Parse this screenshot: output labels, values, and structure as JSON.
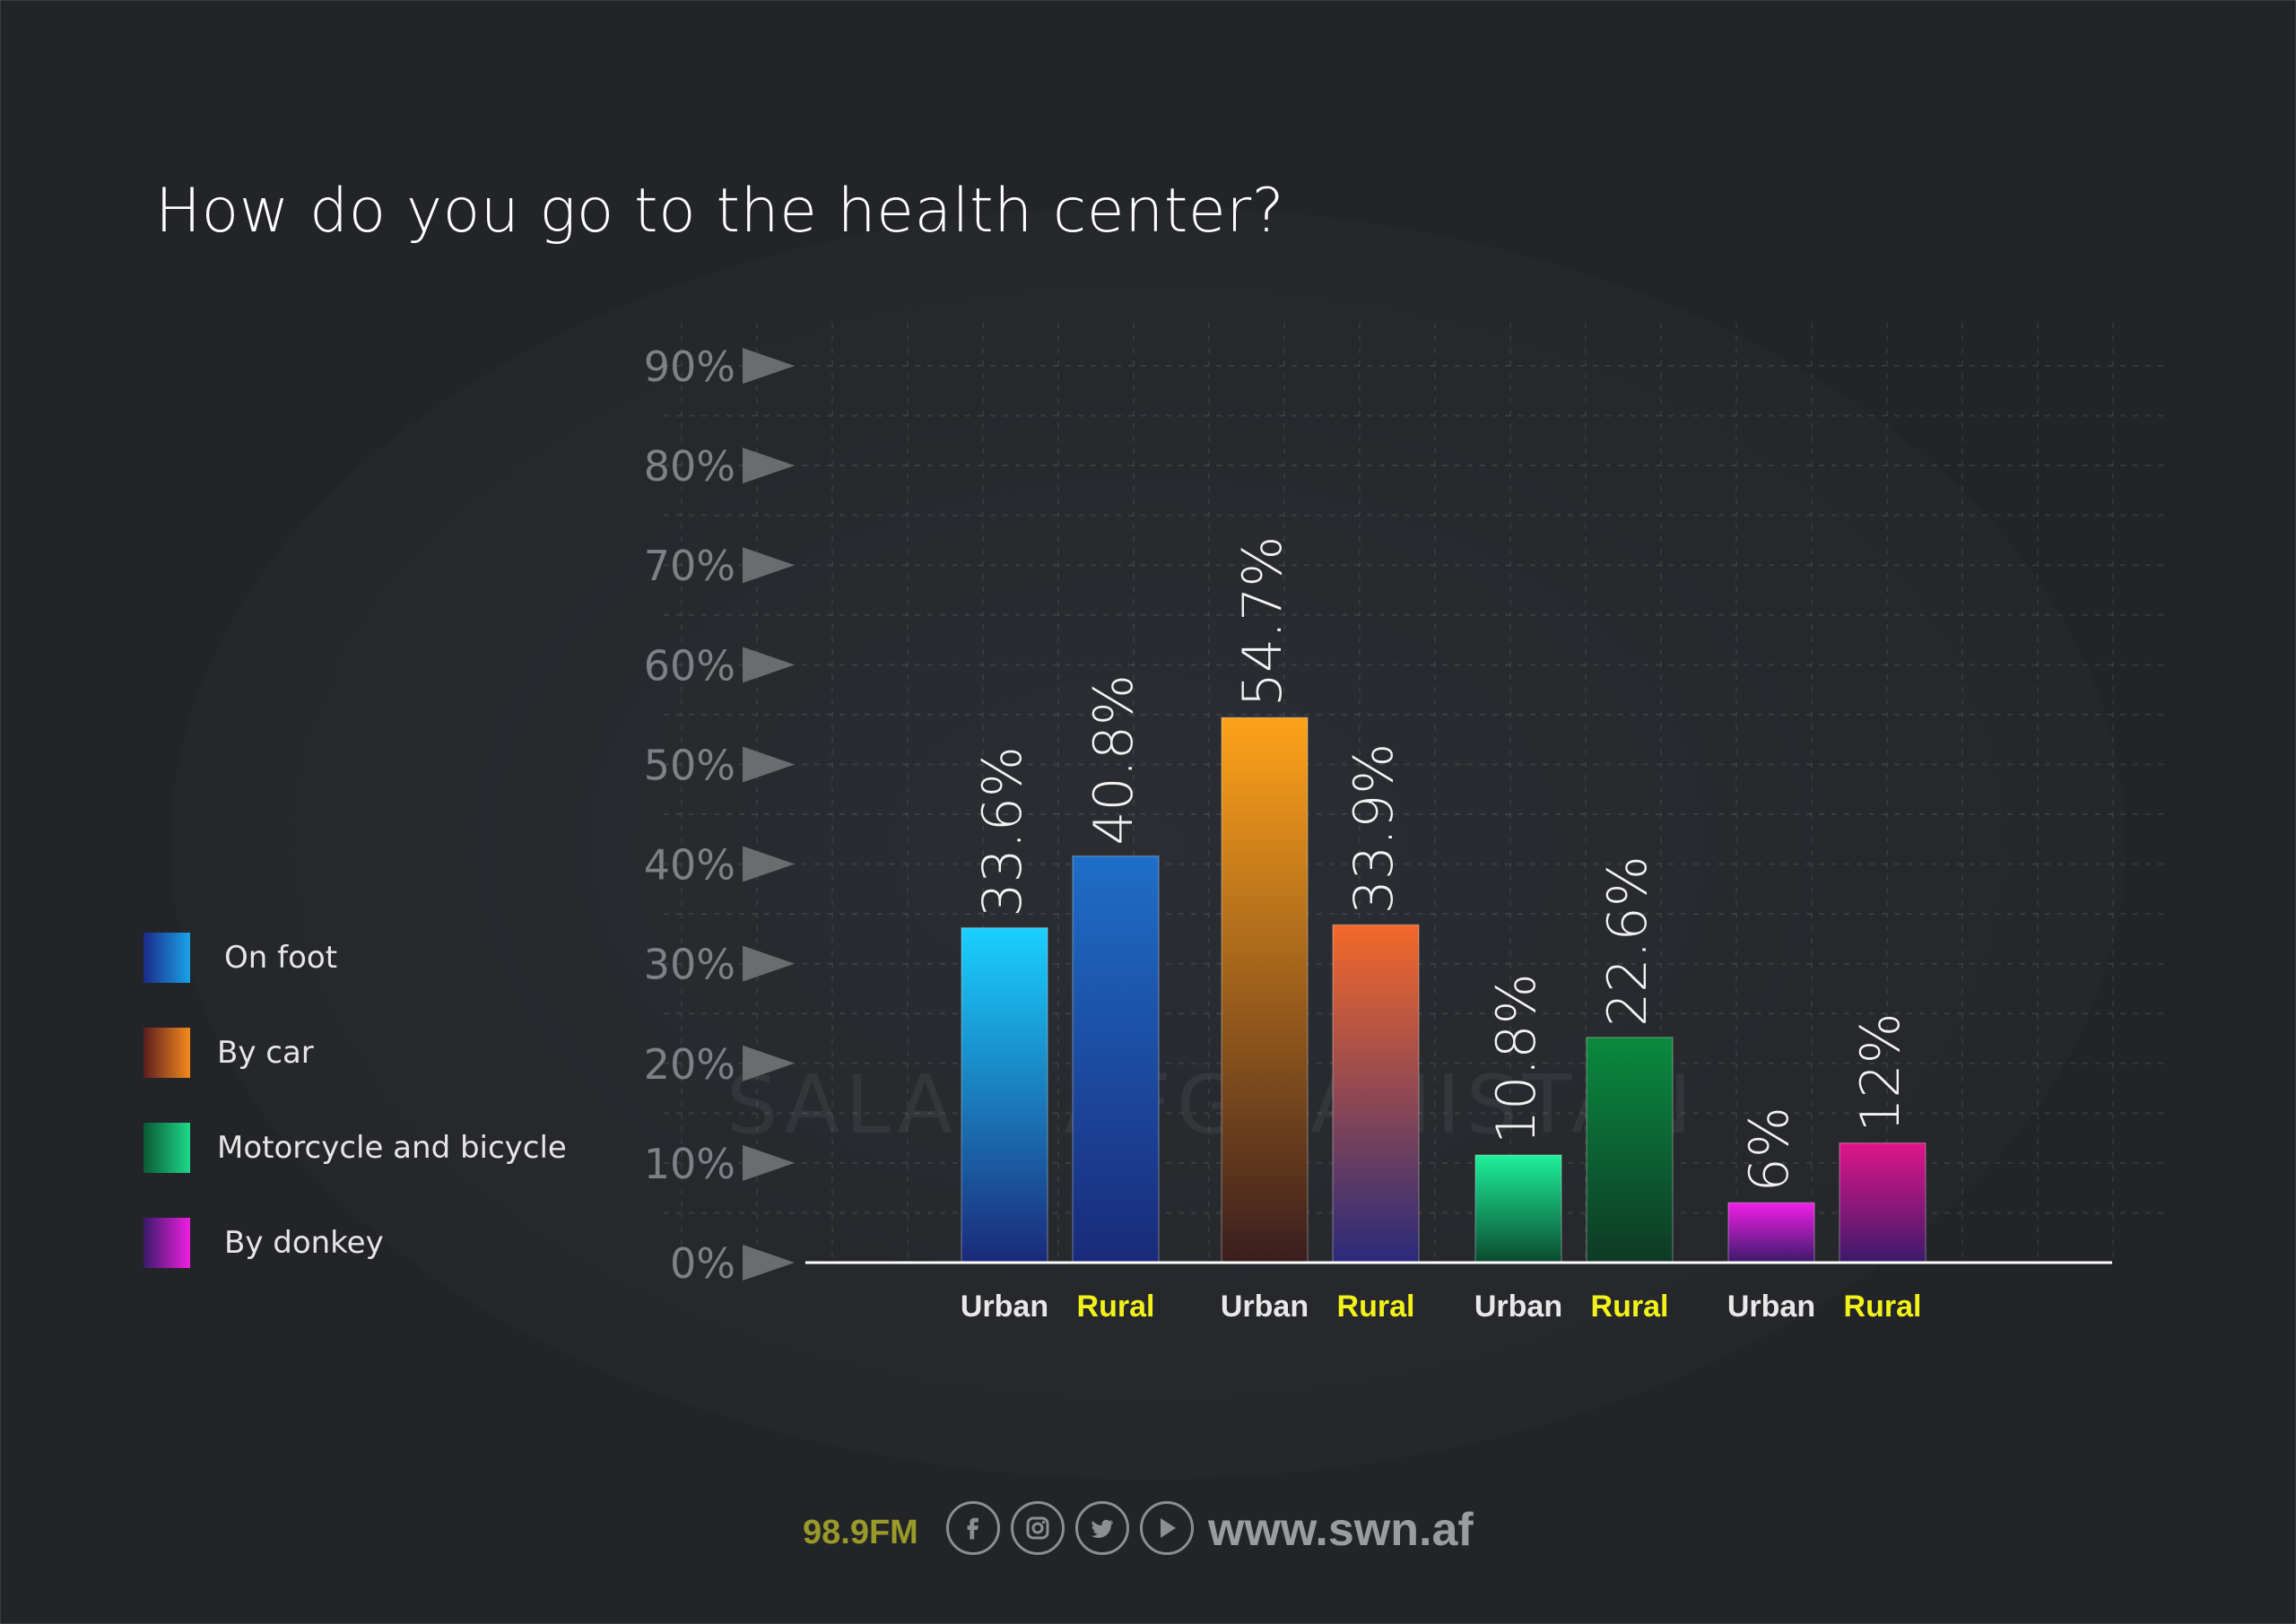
{
  "title": "How do you go to the health center?",
  "legend": [
    {
      "label": "On foot",
      "color_top": "#1aa3e8",
      "color_bottom": "#1a2a8a"
    },
    {
      "label": "By car",
      "color_top": "#f58a1e",
      "color_bottom": "#5a1e1e"
    },
    {
      "label": "Motorcycle and bicycle",
      "color_top": "#1ed98a",
      "color_bottom": "#0a5a36"
    },
    {
      "label": "By donkey",
      "color_top": "#f01ee0",
      "color_bottom": "#3a1a6a"
    }
  ],
  "chart_data": {
    "type": "bar",
    "title": "How do you go to the health center?",
    "ylim": [
      0,
      90
    ],
    "yticks": [
      "0%",
      "10%",
      "20%",
      "30%",
      "40%",
      "50%",
      "60%",
      "70%",
      "80%",
      "90%"
    ],
    "grid": true,
    "groups": [
      {
        "series": "On foot",
        "bars": [
          {
            "category": "Urban",
            "value": 33.6,
            "label": "33.6%",
            "top": "#1ad0ff",
            "bottom": "#1a2a7a"
          },
          {
            "category": "Rural",
            "value": 40.8,
            "label": "40.8%",
            "top": "#1e6ec8",
            "bottom": "#1a2a7a"
          }
        ]
      },
      {
        "series": "By car",
        "bars": [
          {
            "category": "Urban",
            "value": 54.7,
            "label": "54.7%",
            "top": "#ffa21a",
            "bottom": "#3a1e1e"
          },
          {
            "category": "Rural",
            "value": 33.9,
            "label": "33.9%",
            "top": "#f5682a",
            "bottom": "#2a2a7a"
          }
        ]
      },
      {
        "series": "Motorcycle and bicycle",
        "bars": [
          {
            "category": "Urban",
            "value": 10.8,
            "label": "10.8%",
            "top": "#1ef09a",
            "bottom": "#0a4a30"
          },
          {
            "category": "Rural",
            "value": 22.6,
            "label": "22.6%",
            "top": "#0a8a3e",
            "bottom": "#0e3a26"
          }
        ]
      },
      {
        "series": "By donkey",
        "bars": [
          {
            "category": "Urban",
            "value": 6,
            "label": "6%",
            "top": "#f01ee8",
            "bottom": "#3a1a6a"
          },
          {
            "category": "Rural",
            "value": 12,
            "label": "12%",
            "top": "#e0158a",
            "bottom": "#3a1a6a"
          }
        ]
      }
    ],
    "category_colors": {
      "Urban": "#e8e8e8",
      "Rural": "#f2f21a"
    }
  },
  "footer": {
    "frequency": "98.9FM",
    "website": "www.swn.af",
    "social_icons": [
      "facebook-icon",
      "instagram-icon",
      "twitter-icon",
      "play-icon"
    ]
  },
  "watermark": "SALAM AFGHANISTAN"
}
